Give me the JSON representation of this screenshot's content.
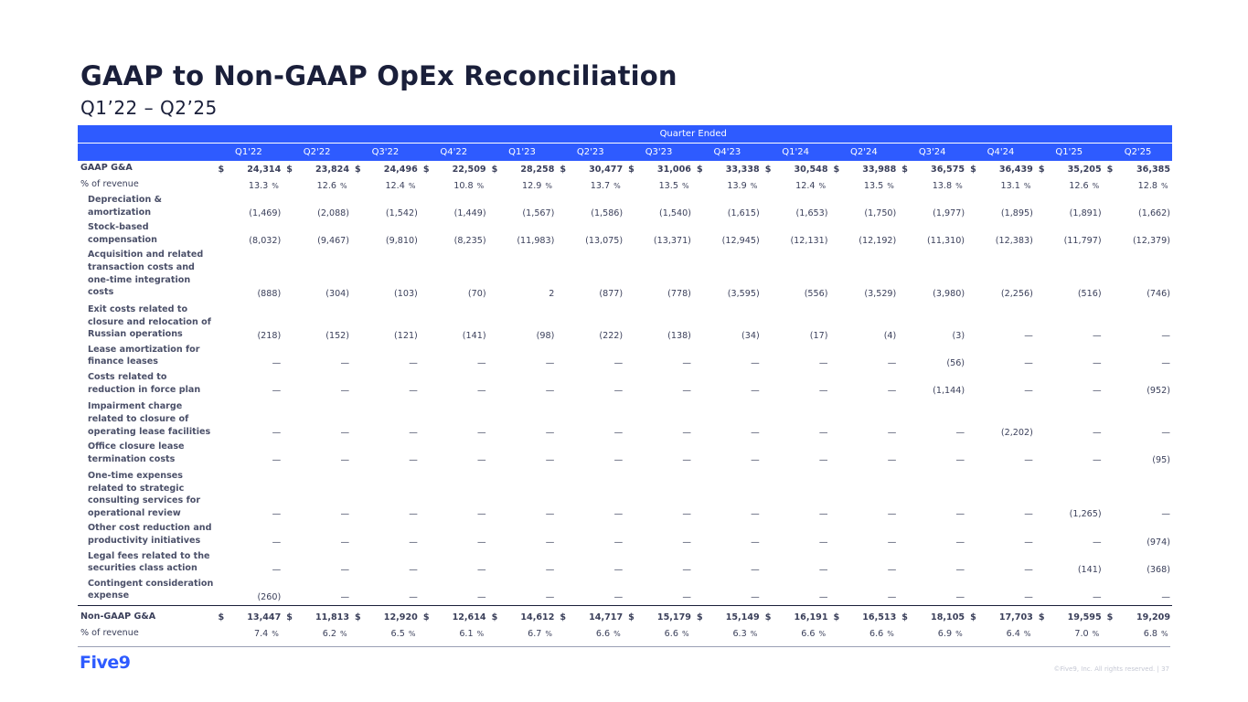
{
  "title": "GAAP to Non-GAAP OpEx Reconciliation",
  "subtitle": "Q1’22 – Q2’25",
  "group_header": "Quarter Ended",
  "quarters": [
    "Q1'22",
    "Q2'22",
    "Q3'22",
    "Q4'22",
    "Q1'23",
    "Q2'23",
    "Q3'23",
    "Q4'23",
    "Q1'24",
    "Q2'24",
    "Q3'24",
    "Q4'24",
    "Q1'25",
    "Q2'25"
  ],
  "rows": [
    {
      "label": "GAAP G&A",
      "cur": "$",
      "values": [
        "24,314",
        "23,824",
        "24,496",
        "22,509",
        "28,258",
        "30,477",
        "31,006",
        "33,338",
        "30,548",
        "33,988",
        "36,575",
        "36,439",
        "35,205",
        "36,385"
      ]
    },
    {
      "label": "% of revenue",
      "pct": "%",
      "values": [
        "13.3",
        "12.6",
        "12.4",
        "10.8",
        "12.9",
        "13.7",
        "13.5",
        "13.9",
        "12.4",
        "13.5",
        "13.8",
        "13.1",
        "12.6",
        "12.8"
      ]
    },
    {
      "label": "Depreciation & amortization",
      "values": [
        "(1,469)",
        "(2,088)",
        "(1,542)",
        "(1,449)",
        "(1,567)",
        "(1,586)",
        "(1,540)",
        "(1,615)",
        "(1,653)",
        "(1,750)",
        "(1,977)",
        "(1,895)",
        "(1,891)",
        "(1,662)"
      ]
    },
    {
      "label": "Stock-based compensation",
      "values": [
        "(8,032)",
        "(9,467)",
        "(9,810)",
        "(8,235)",
        "(11,983)",
        "(13,075)",
        "(13,371)",
        "(12,945)",
        "(12,131)",
        "(12,192)",
        "(11,310)",
        "(12,383)",
        "(11,797)",
        "(12,379)"
      ]
    },
    {
      "label": "Acquisition and related transaction costs and one-time integration costs",
      "values": [
        "(888)",
        "(304)",
        "(103)",
        "(70)",
        "2",
        "(877)",
        "(778)",
        "(3,595)",
        "(556)",
        "(3,529)",
        "(3,980)",
        "(2,256)",
        "(516)",
        "(746)"
      ]
    },
    {
      "label": "Exit costs related to closure and relocation of Russian operations",
      "values": [
        "(218)",
        "(152)",
        "(121)",
        "(141)",
        "(98)",
        "(222)",
        "(138)",
        "(34)",
        "(17)",
        "(4)",
        "(3)",
        "—",
        "—",
        "—"
      ]
    },
    {
      "label": "Lease amortization for finance leases",
      "values": [
        "—",
        "—",
        "—",
        "—",
        "—",
        "—",
        "—",
        "—",
        "—",
        "—",
        "(56)",
        "—",
        "—",
        "—"
      ]
    },
    {
      "label": "Costs related to reduction in force plan",
      "values": [
        "—",
        "—",
        "—",
        "—",
        "—",
        "—",
        "—",
        "—",
        "—",
        "—",
        "(1,144)",
        "—",
        "—",
        "(952)"
      ]
    },
    {
      "label": "Impairment charge related to closure of operating lease facilities",
      "values": [
        "—",
        "—",
        "—",
        "—",
        "—",
        "—",
        "—",
        "—",
        "—",
        "—",
        "—",
        "(2,202)",
        "—",
        "—"
      ]
    },
    {
      "label": "Office closure lease termination costs",
      "values": [
        "—",
        "—",
        "—",
        "—",
        "—",
        "—",
        "—",
        "—",
        "—",
        "—",
        "—",
        "—",
        "—",
        "(95)"
      ]
    },
    {
      "label": "One-time expenses related to strategic consulting services for operational review",
      "values": [
        "—",
        "—",
        "—",
        "—",
        "—",
        "—",
        "—",
        "—",
        "—",
        "—",
        "—",
        "—",
        "(1,265)",
        "—"
      ]
    },
    {
      "label": "Other cost reduction and productivity initiatives",
      "values": [
        "—",
        "—",
        "—",
        "—",
        "—",
        "—",
        "—",
        "—",
        "—",
        "—",
        "—",
        "—",
        "—",
        "(974)"
      ]
    },
    {
      "label": "Legal fees related to the securities class action",
      "values": [
        "—",
        "—",
        "—",
        "—",
        "—",
        "—",
        "—",
        "—",
        "—",
        "—",
        "—",
        "—",
        "(141)",
        "(368)"
      ]
    },
    {
      "label": "Contingent consideration expense",
      "values": [
        "(260)",
        "—",
        "—",
        "—",
        "—",
        "—",
        "—",
        "—",
        "—",
        "—",
        "—",
        "—",
        "—",
        "—"
      ]
    },
    {
      "label": "Non-GAAP G&A",
      "cur": "$",
      "values": [
        "13,447",
        "11,813",
        "12,920",
        "12,614",
        "14,612",
        "14,717",
        "15,179",
        "15,149",
        "16,191",
        "16,513",
        "18,105",
        "17,703",
        "19,595",
        "19,209"
      ]
    },
    {
      "label": "% of revenue",
      "pct": "%",
      "values": [
        "7.4",
        "6.2",
        "6.5",
        "6.1",
        "6.7",
        "6.6",
        "6.6",
        "6.3",
        "6.6",
        "6.6",
        "6.9",
        "6.4",
        "7.0",
        "6.8"
      ]
    }
  ],
  "logo_text": "Five9",
  "copyright": "©Five9, Inc. All rights reserved. | 37",
  "accent_color": "#2e5bff"
}
